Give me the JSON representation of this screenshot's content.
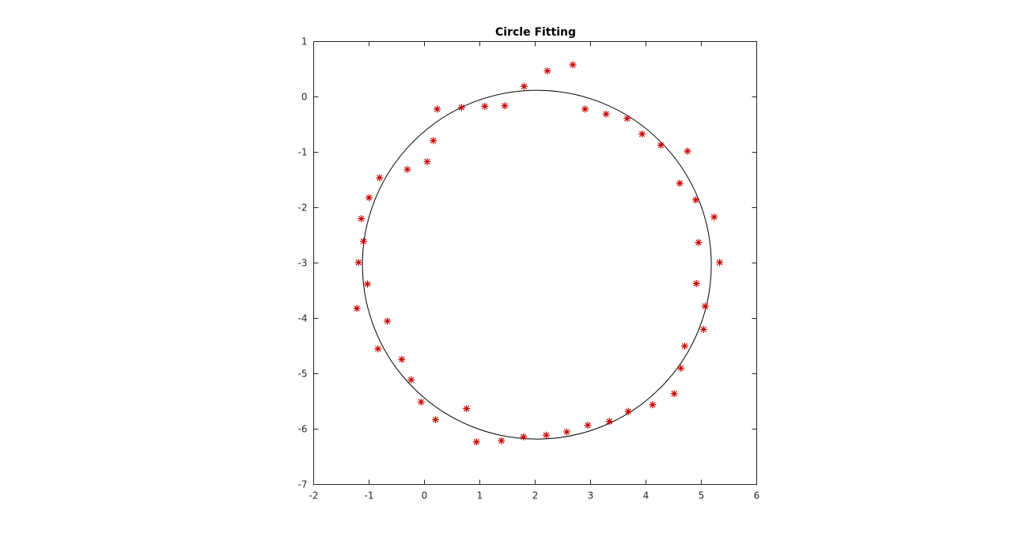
{
  "chart_data": {
    "type": "scatter",
    "title": "Circle Fitting",
    "xlabel": "",
    "ylabel": "",
    "xlim": [
      -2,
      6
    ],
    "ylim": [
      -7,
      1
    ],
    "xticks": [
      -2,
      -1,
      0,
      1,
      2,
      3,
      4,
      5,
      6
    ],
    "yticks": [
      1,
      0,
      -1,
      -2,
      -3,
      -4,
      -5,
      -6,
      -7
    ],
    "grid": false,
    "legend": "none",
    "series": [
      {
        "kind": "scatter",
        "marker": "asterisk",
        "color": "#cc0000",
        "points": [
          [
            2.22,
            0.47
          ],
          [
            2.68,
            0.58
          ],
          [
            1.8,
            0.19
          ],
          [
            0.23,
            -0.22
          ],
          [
            0.67,
            -0.19
          ],
          [
            1.09,
            -0.17
          ],
          [
            1.45,
            -0.16
          ],
          [
            2.9,
            -0.22
          ],
          [
            3.28,
            -0.31
          ],
          [
            3.66,
            -0.39
          ],
          [
            3.93,
            -0.67
          ],
          [
            4.27,
            -0.87
          ],
          [
            4.75,
            -0.98
          ],
          [
            0.16,
            -0.79
          ],
          [
            0.05,
            -1.17
          ],
          [
            -0.31,
            -1.31
          ],
          [
            -0.81,
            -1.46
          ],
          [
            -1.0,
            -1.82
          ],
          [
            -1.14,
            -2.2
          ],
          [
            -1.1,
            -2.61
          ],
          [
            -1.19,
            -2.99
          ],
          [
            -1.03,
            -3.38
          ],
          [
            -1.22,
            -3.82
          ],
          [
            -0.67,
            -4.05
          ],
          [
            -0.84,
            -4.55
          ],
          [
            -0.41,
            -4.74
          ],
          [
            -0.24,
            -5.11
          ],
          [
            -0.06,
            -5.51
          ],
          [
            0.2,
            -5.83
          ],
          [
            0.76,
            -5.63
          ],
          [
            0.94,
            -6.23
          ],
          [
            1.39,
            -6.21
          ],
          [
            1.79,
            -6.14
          ],
          [
            2.2,
            -6.11
          ],
          [
            2.57,
            -6.05
          ],
          [
            2.95,
            -5.93
          ],
          [
            3.34,
            -5.86
          ],
          [
            3.68,
            -5.68
          ],
          [
            4.12,
            -5.56
          ],
          [
            4.51,
            -5.36
          ],
          [
            4.63,
            -4.9
          ],
          [
            4.7,
            -4.5
          ],
          [
            5.04,
            -4.2
          ],
          [
            5.07,
            -3.78
          ],
          [
            4.91,
            -3.37
          ],
          [
            5.33,
            -2.99
          ],
          [
            4.95,
            -2.63
          ],
          [
            4.9,
            -1.86
          ],
          [
            5.23,
            -2.17
          ],
          [
            4.61,
            -1.56
          ]
        ]
      },
      {
        "kind": "circle",
        "color": "#000000",
        "center": [
          2.03,
          -3.03
        ],
        "radius": 3.15
      }
    ]
  }
}
